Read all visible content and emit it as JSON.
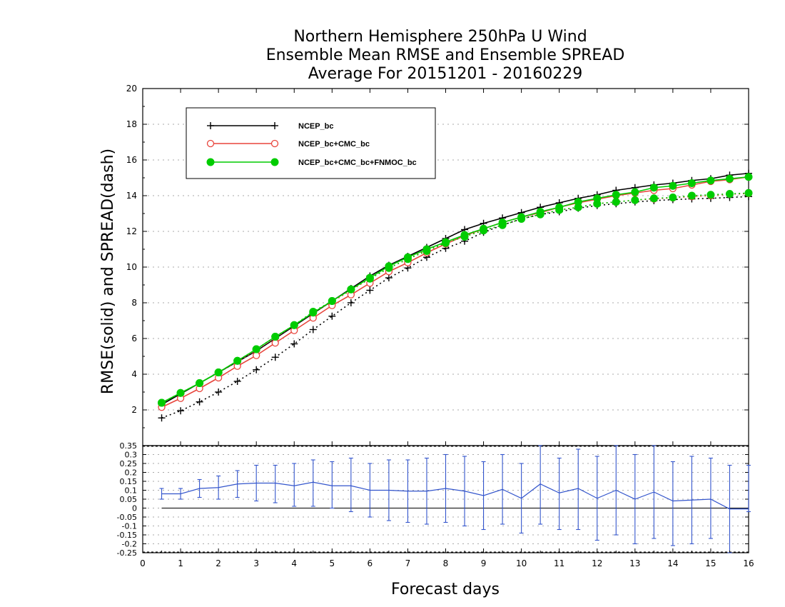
{
  "chart_data": {
    "type": "line",
    "title": [
      "Northern Hemisphere 250hPa U Wind",
      "Ensemble Mean RMSE and Ensemble SPREAD",
      "Average For 20151201 - 20160229"
    ],
    "xlabel": "Forecast days",
    "ylabel": "RMSE(solid)  and  SPREAD(dash)",
    "xlim": [
      0,
      16
    ],
    "x_ticks": [
      "0",
      "1",
      "2",
      "3",
      "4",
      "5",
      "6",
      "7",
      "8",
      "9",
      "10",
      "11",
      "12",
      "13",
      "14",
      "15",
      "16"
    ],
    "ylim": [
      0,
      20
    ],
    "y_ticks": [
      "2",
      "4",
      "6",
      "8",
      "10",
      "12",
      "14",
      "16",
      "18",
      "20"
    ],
    "x": [
      0.5,
      1,
      1.5,
      2,
      2.5,
      3,
      3.5,
      4,
      4.5,
      5,
      5.5,
      6,
      6.5,
      7,
      7.5,
      8,
      8.5,
      9,
      9.5,
      10,
      10.5,
      11,
      11.5,
      12,
      12.5,
      13,
      13.5,
      14,
      14.5,
      15,
      15.5,
      16
    ],
    "series": [
      {
        "name": "NCEP_bc",
        "color": "#000000",
        "marker": "plus",
        "rmse": [
          2.3,
          2.9,
          3.5,
          4.1,
          4.7,
          5.3,
          6.0,
          6.7,
          7.4,
          8.1,
          8.8,
          9.5,
          10.1,
          10.6,
          11.1,
          11.6,
          12.1,
          12.45,
          12.75,
          13.05,
          13.35,
          13.6,
          13.85,
          14.05,
          14.3,
          14.45,
          14.6,
          14.7,
          14.85,
          14.95,
          15.15,
          15.25
        ],
        "spread": [
          1.55,
          1.95,
          2.45,
          3.0,
          3.6,
          4.25,
          4.95,
          5.7,
          6.5,
          7.25,
          8.0,
          8.7,
          9.4,
          9.95,
          10.55,
          11.05,
          11.45,
          11.95,
          12.35,
          12.7,
          12.95,
          13.1,
          13.3,
          13.45,
          13.55,
          13.65,
          13.72,
          13.78,
          13.82,
          13.85,
          13.9,
          13.95
        ]
      },
      {
        "name": "NCEP_bc+CMC_bc",
        "color": "#e8453c",
        "marker": "open-circle",
        "rmse": [
          2.15,
          2.65,
          3.2,
          3.8,
          4.45,
          5.05,
          5.75,
          6.45,
          7.15,
          7.85,
          8.45,
          9.1,
          9.75,
          10.25,
          10.8,
          11.3,
          11.75,
          12.15,
          12.5,
          12.8,
          13.05,
          13.35,
          13.6,
          13.8,
          14.0,
          14.15,
          14.3,
          14.4,
          14.6,
          14.8,
          14.9,
          15.05
        ],
        "spread": [
          2.4,
          2.95,
          3.5,
          4.1,
          4.7,
          5.35,
          6.05,
          6.75,
          7.45,
          8.05,
          8.7,
          9.35,
          9.95,
          10.45,
          10.95,
          11.35,
          11.75,
          12.05,
          12.35,
          12.7,
          12.95,
          13.2,
          13.35,
          13.55,
          13.65,
          13.75,
          13.82,
          13.88,
          13.95,
          14.0,
          14.08,
          14.12
        ]
      },
      {
        "name": "NCEP_bc+CMC_bc+FNMOC_bc",
        "color": "#00cc00",
        "marker": "filled-circle",
        "rmse": [
          2.4,
          2.95,
          3.5,
          4.1,
          4.75,
          5.4,
          6.1,
          6.75,
          7.45,
          8.1,
          8.75,
          9.4,
          10.05,
          10.55,
          11.0,
          11.4,
          11.8,
          12.15,
          12.5,
          12.8,
          13.1,
          13.35,
          13.65,
          13.85,
          14.05,
          14.2,
          14.45,
          14.55,
          14.7,
          14.85,
          14.95,
          15.05
        ],
        "spread": [
          2.4,
          2.95,
          3.5,
          4.1,
          4.75,
          5.4,
          6.1,
          6.75,
          7.5,
          8.1,
          8.75,
          9.35,
          9.95,
          10.45,
          10.9,
          11.35,
          11.7,
          12.05,
          12.35,
          12.7,
          12.95,
          13.2,
          13.35,
          13.55,
          13.65,
          13.75,
          13.85,
          13.9,
          14.0,
          14.05,
          14.1,
          14.15
        ]
      }
    ],
    "legend": {
      "position": "top-left",
      "entries": [
        "NCEP_bc",
        "NCEP_bc+CMC_bc",
        "NCEP_bc+CMC_bc+FNMOC_bc"
      ]
    },
    "grid": true,
    "lower_panel": {
      "type": "line-with-error-bars",
      "color": "#3355cc",
      "ylim": [
        -0.25,
        0.35
      ],
      "y_ticks": [
        "0.35",
        "0.3",
        "0.25",
        "0.2",
        "0.15",
        "0.1",
        "0.05",
        "0",
        "-0.05",
        "-0.1",
        "-0.15",
        "-0.2",
        "-0.25"
      ],
      "zero_line": true,
      "x": [
        0.5,
        1,
        1.5,
        2,
        2.5,
        3,
        3.5,
        4,
        4.5,
        5,
        5.5,
        6,
        6.5,
        7,
        7.5,
        8,
        8.5,
        9,
        9.5,
        10,
        10.5,
        11,
        11.5,
        12,
        12.5,
        13,
        13.5,
        14,
        14.5,
        15,
        15.5,
        16
      ],
      "values": [
        0.08,
        0.08,
        0.11,
        0.115,
        0.135,
        0.14,
        0.14,
        0.125,
        0.145,
        0.125,
        0.125,
        0.1,
        0.1,
        0.095,
        0.095,
        0.11,
        0.095,
        0.07,
        0.105,
        0.055,
        0.135,
        0.085,
        0.11,
        0.055,
        0.1,
        0.05,
        0.09,
        0.04,
        0.045,
        0.05,
        -0.005,
        -0.005
      ],
      "err_low": [
        0.05,
        0.05,
        0.06,
        0.05,
        0.06,
        0.04,
        0.03,
        0.01,
        0.01,
        0.0,
        -0.02,
        -0.05,
        -0.07,
        -0.08,
        -0.09,
        -0.08,
        -0.1,
        -0.12,
        -0.09,
        -0.14,
        -0.09,
        -0.12,
        -0.12,
        -0.18,
        -0.15,
        -0.2,
        -0.17,
        -0.21,
        -0.2,
        -0.17,
        -0.25,
        -0.02
      ],
      "err_high": [
        0.11,
        0.11,
        0.16,
        0.18,
        0.21,
        0.24,
        0.24,
        0.25,
        0.27,
        0.26,
        0.28,
        0.25,
        0.27,
        0.27,
        0.28,
        0.3,
        0.29,
        0.26,
        0.3,
        0.25,
        0.36,
        0.28,
        0.33,
        0.29,
        0.35,
        0.3,
        0.36,
        0.26,
        0.29,
        0.28,
        0.24,
        0.24
      ]
    }
  }
}
